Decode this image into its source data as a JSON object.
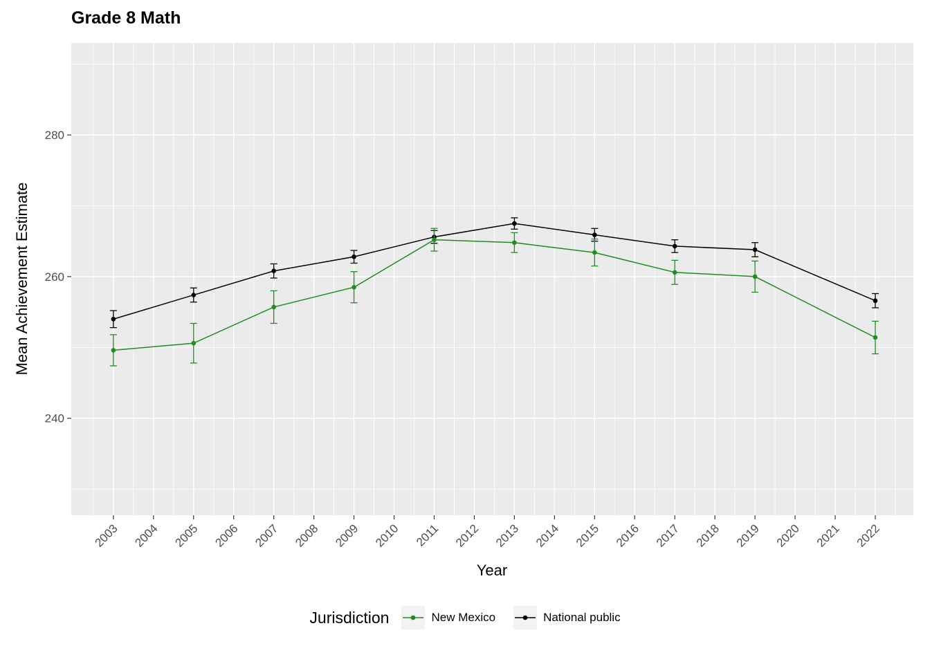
{
  "chart_data": {
    "type": "line",
    "title": "Grade 8 Math",
    "xlabel": "Year",
    "ylabel": "Mean Achievement Estimate",
    "legend_title": "Jurisdiction",
    "legend_position": "bottom",
    "grid": true,
    "x_ticks": [
      2003,
      2004,
      2005,
      2006,
      2007,
      2008,
      2009,
      2010,
      2011,
      2012,
      2013,
      2014,
      2015,
      2016,
      2017,
      2018,
      2019,
      2020,
      2021,
      2022
    ],
    "y_ticks": [
      240,
      260,
      280
    ],
    "y_minor": [
      230,
      250,
      270,
      290
    ],
    "xlim": [
      2001.95,
      2022.95
    ],
    "ylim": [
      226.3,
      293.0
    ],
    "x": [
      2003,
      2005,
      2007,
      2009,
      2011,
      2013,
      2015,
      2017,
      2019,
      2022
    ],
    "series": [
      {
        "name": "National public",
        "color": "#000000",
        "values": [
          254.0,
          257.4,
          260.8,
          262.8,
          265.6,
          267.5,
          265.9,
          264.3,
          263.8,
          256.6
        ],
        "error": [
          1.2,
          1.0,
          1.0,
          0.9,
          0.9,
          0.8,
          0.9,
          0.9,
          1.0,
          1.0
        ]
      },
      {
        "name": "New Mexico",
        "color": "#228B22",
        "values": [
          249.6,
          250.6,
          255.7,
          258.5,
          265.2,
          264.8,
          263.4,
          260.6,
          260.0,
          251.4
        ],
        "error": [
          2.2,
          2.8,
          2.3,
          2.2,
          1.6,
          1.4,
          1.9,
          1.7,
          2.2,
          2.3
        ]
      }
    ],
    "legend_order": [
      "New Mexico",
      "National public"
    ],
    "colors": {
      "panel_bg": "#EBEBEB",
      "grid_major": "#FFFFFF",
      "grid_minor": "#FFFFFF",
      "axis_text": "#4D4D4D",
      "tick_mark": "#333333",
      "legend_key_bg": "#F2F2F2"
    }
  }
}
